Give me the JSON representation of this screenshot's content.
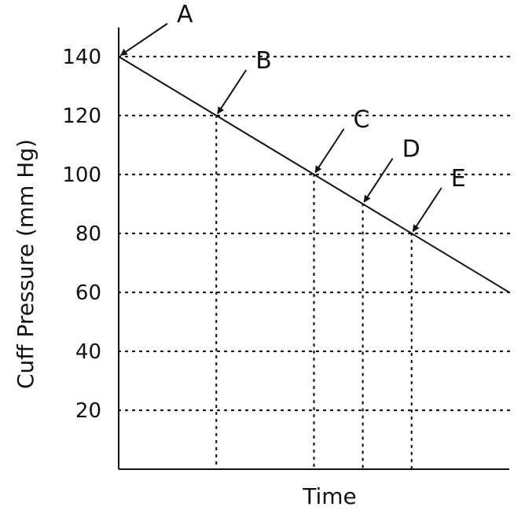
{
  "chart_data": {
    "type": "line",
    "xlabel": "Time",
    "ylabel": "Cuff Pressure (mm Hg)",
    "ylim": [
      0,
      140
    ],
    "yticks": [
      20,
      40,
      60,
      80,
      100,
      120,
      140
    ],
    "xlim": [
      0,
      8
    ],
    "grid": "dotted horizontal lines at y ticks; dotted vertical drop lines at points B, C, D, E",
    "series": [
      {
        "x": [
          0,
          8
        ],
        "y": [
          140,
          60
        ]
      }
    ],
    "annotations": [
      {
        "label": "A",
        "x": 0,
        "y": 140
      },
      {
        "label": "B",
        "x": 2,
        "y": 120
      },
      {
        "label": "C",
        "x": 4,
        "y": 100
      },
      {
        "label": "D",
        "x": 5,
        "y": 90
      },
      {
        "label": "E",
        "x": 6,
        "y": 80
      }
    ],
    "colors": {
      "line": "#111111",
      "grid": "#111111"
    }
  }
}
